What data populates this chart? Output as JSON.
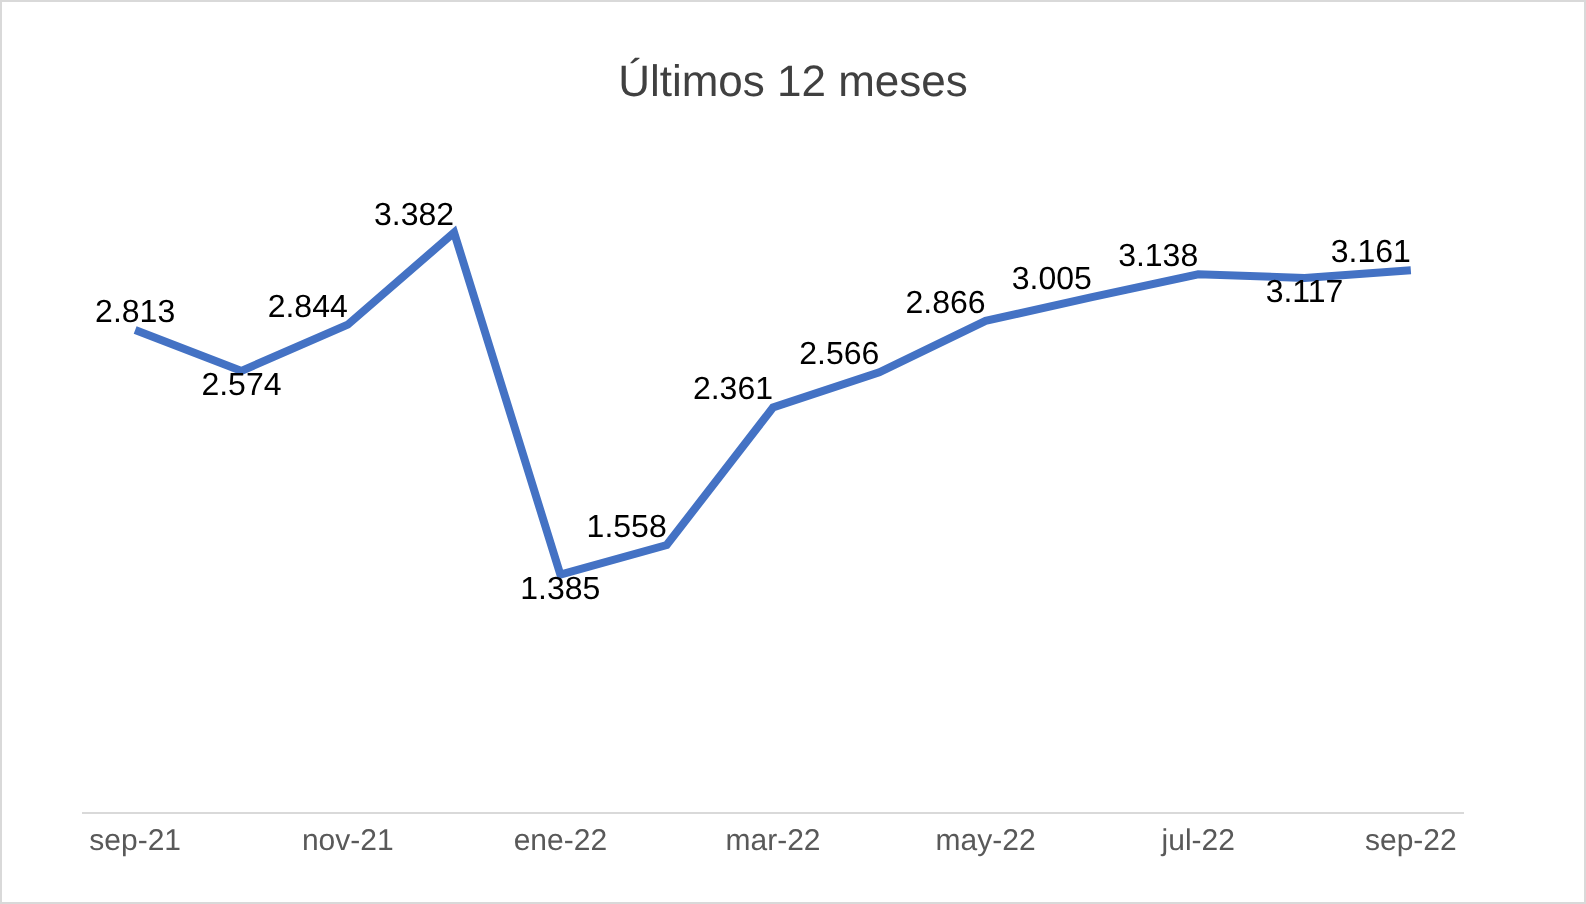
{
  "chart_data": {
    "type": "line",
    "title": "Últimos 12 meses",
    "categories": [
      "sep-21",
      null,
      "nov-21",
      null,
      "ene-22",
      null,
      "mar-22",
      null,
      "may-22",
      null,
      "jul-22",
      null,
      "sep-22"
    ],
    "series": [
      {
        "color": "#4472c4",
        "values": [
          2813,
          2574,
          2844,
          3382,
          1385,
          1558,
          2361,
          2566,
          2866,
          3005,
          3138,
          3117,
          3161
        ],
        "value_labels": [
          "2.813",
          "2.574",
          "2.844",
          "3.382",
          "1.385",
          "1.558",
          "2.361",
          "2.566",
          "2.866",
          "3.005",
          "3.138",
          "3.117",
          "3.161"
        ]
      }
    ],
    "marker": "none",
    "line_style": "solid",
    "grid": false,
    "tick_labels": "x"
  }
}
